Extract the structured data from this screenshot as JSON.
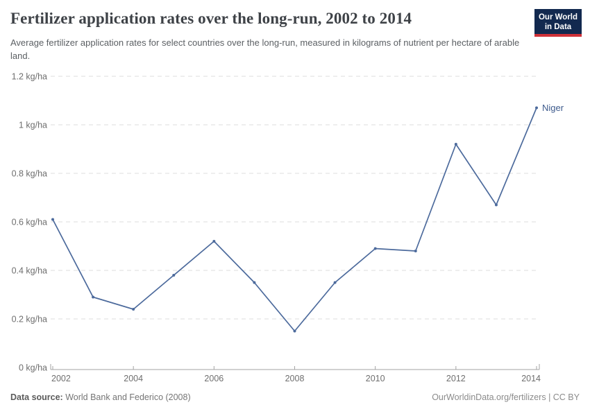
{
  "header": {
    "title": "Fertilizer application rates over the long-run, 2002 to 2014",
    "subtitle": "Average fertilizer application rates for select countries over the long-run, measured in kilograms of nutrient per hectare of arable land.",
    "logo": {
      "line1": "Our World",
      "line2": "in Data",
      "bg_color": "#12294f",
      "accent_color": "#cf3138"
    }
  },
  "chart_data": {
    "type": "line",
    "title": "Fertilizer application rates over the long-run, 2002 to 2014",
    "xlabel": "",
    "ylabel": "kg/ha",
    "x": [
      2002,
      2003,
      2004,
      2005,
      2006,
      2007,
      2008,
      2009,
      2010,
      2011,
      2012,
      2013,
      2014
    ],
    "series": [
      {
        "name": "Niger",
        "color": "#4c6a9c",
        "values": [
          0.61,
          0.29,
          0.24,
          0.38,
          0.52,
          0.35,
          0.15,
          0.35,
          0.49,
          0.48,
          0.92,
          0.67,
          1.07
        ]
      }
    ],
    "end_label": "Niger",
    "end_label_color": "#3d5a8c",
    "xlim": [
      2002,
      2014
    ],
    "ylim": [
      0,
      1.2
    ],
    "y_ticks": [
      {
        "value": 0,
        "label": "0 kg/ha"
      },
      {
        "value": 0.2,
        "label": "0.2 kg/ha"
      },
      {
        "value": 0.4,
        "label": "0.4 kg/ha"
      },
      {
        "value": 0.6,
        "label": "0.6 kg/ha"
      },
      {
        "value": 0.8,
        "label": "0.8 kg/ha"
      },
      {
        "value": 1,
        "label": "1 kg/ha"
      },
      {
        "value": 1.2,
        "label": "1.2 kg/ha"
      }
    ],
    "x_ticks": [
      2002,
      2004,
      2006,
      2008,
      2010,
      2012,
      2014
    ],
    "grid": "horizontal-dashed",
    "grid_color": "#dcdcdc",
    "axis_color": "#a3a3a3",
    "tick_label_color": "#6e6e6e",
    "legend_position": "end-of-line"
  },
  "footer": {
    "source_label": "Data source:",
    "source_value": " World Bank and Federico (2008)",
    "link": "OurWorldinData.org/fertilizers | CC BY"
  }
}
